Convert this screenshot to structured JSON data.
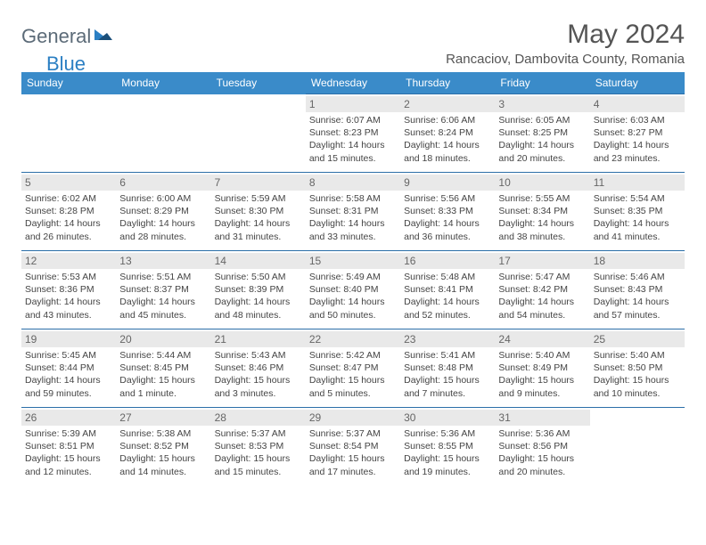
{
  "logo": {
    "part1": "General",
    "part2": "Blue"
  },
  "title": "May 2024",
  "location": "Rancaciov, Dambovita County, Romania",
  "headers": [
    "Sunday",
    "Monday",
    "Tuesday",
    "Wednesday",
    "Thursday",
    "Friday",
    "Saturday"
  ],
  "colors": {
    "header_bg": "#3a8bc9",
    "header_text": "#ffffff",
    "daynum_bg": "#e9e9e9",
    "border": "#2b6ea8",
    "logo_gray": "#5c6b78",
    "logo_blue": "#2b7fc3"
  },
  "weeks": [
    [
      null,
      null,
      null,
      {
        "n": "1",
        "sr": "6:07 AM",
        "ss": "8:23 PM",
        "dl": "14 hours and 15 minutes."
      },
      {
        "n": "2",
        "sr": "6:06 AM",
        "ss": "8:24 PM",
        "dl": "14 hours and 18 minutes."
      },
      {
        "n": "3",
        "sr": "6:05 AM",
        "ss": "8:25 PM",
        "dl": "14 hours and 20 minutes."
      },
      {
        "n": "4",
        "sr": "6:03 AM",
        "ss": "8:27 PM",
        "dl": "14 hours and 23 minutes."
      }
    ],
    [
      {
        "n": "5",
        "sr": "6:02 AM",
        "ss": "8:28 PM",
        "dl": "14 hours and 26 minutes."
      },
      {
        "n": "6",
        "sr": "6:00 AM",
        "ss": "8:29 PM",
        "dl": "14 hours and 28 minutes."
      },
      {
        "n": "7",
        "sr": "5:59 AM",
        "ss": "8:30 PM",
        "dl": "14 hours and 31 minutes."
      },
      {
        "n": "8",
        "sr": "5:58 AM",
        "ss": "8:31 PM",
        "dl": "14 hours and 33 minutes."
      },
      {
        "n": "9",
        "sr": "5:56 AM",
        "ss": "8:33 PM",
        "dl": "14 hours and 36 minutes."
      },
      {
        "n": "10",
        "sr": "5:55 AM",
        "ss": "8:34 PM",
        "dl": "14 hours and 38 minutes."
      },
      {
        "n": "11",
        "sr": "5:54 AM",
        "ss": "8:35 PM",
        "dl": "14 hours and 41 minutes."
      }
    ],
    [
      {
        "n": "12",
        "sr": "5:53 AM",
        "ss": "8:36 PM",
        "dl": "14 hours and 43 minutes."
      },
      {
        "n": "13",
        "sr": "5:51 AM",
        "ss": "8:37 PM",
        "dl": "14 hours and 45 minutes."
      },
      {
        "n": "14",
        "sr": "5:50 AM",
        "ss": "8:39 PM",
        "dl": "14 hours and 48 minutes."
      },
      {
        "n": "15",
        "sr": "5:49 AM",
        "ss": "8:40 PM",
        "dl": "14 hours and 50 minutes."
      },
      {
        "n": "16",
        "sr": "5:48 AM",
        "ss": "8:41 PM",
        "dl": "14 hours and 52 minutes."
      },
      {
        "n": "17",
        "sr": "5:47 AM",
        "ss": "8:42 PM",
        "dl": "14 hours and 54 minutes."
      },
      {
        "n": "18",
        "sr": "5:46 AM",
        "ss": "8:43 PM",
        "dl": "14 hours and 57 minutes."
      }
    ],
    [
      {
        "n": "19",
        "sr": "5:45 AM",
        "ss": "8:44 PM",
        "dl": "14 hours and 59 minutes."
      },
      {
        "n": "20",
        "sr": "5:44 AM",
        "ss": "8:45 PM",
        "dl": "15 hours and 1 minute."
      },
      {
        "n": "21",
        "sr": "5:43 AM",
        "ss": "8:46 PM",
        "dl": "15 hours and 3 minutes."
      },
      {
        "n": "22",
        "sr": "5:42 AM",
        "ss": "8:47 PM",
        "dl": "15 hours and 5 minutes."
      },
      {
        "n": "23",
        "sr": "5:41 AM",
        "ss": "8:48 PM",
        "dl": "15 hours and 7 minutes."
      },
      {
        "n": "24",
        "sr": "5:40 AM",
        "ss": "8:49 PM",
        "dl": "15 hours and 9 minutes."
      },
      {
        "n": "25",
        "sr": "5:40 AM",
        "ss": "8:50 PM",
        "dl": "15 hours and 10 minutes."
      }
    ],
    [
      {
        "n": "26",
        "sr": "5:39 AM",
        "ss": "8:51 PM",
        "dl": "15 hours and 12 minutes."
      },
      {
        "n": "27",
        "sr": "5:38 AM",
        "ss": "8:52 PM",
        "dl": "15 hours and 14 minutes."
      },
      {
        "n": "28",
        "sr": "5:37 AM",
        "ss": "8:53 PM",
        "dl": "15 hours and 15 minutes."
      },
      {
        "n": "29",
        "sr": "5:37 AM",
        "ss": "8:54 PM",
        "dl": "15 hours and 17 minutes."
      },
      {
        "n": "30",
        "sr": "5:36 AM",
        "ss": "8:55 PM",
        "dl": "15 hours and 19 minutes."
      },
      {
        "n": "31",
        "sr": "5:36 AM",
        "ss": "8:56 PM",
        "dl": "15 hours and 20 minutes."
      },
      null
    ]
  ],
  "labels": {
    "sunrise": "Sunrise:",
    "sunset": "Sunset:",
    "daylight": "Daylight:"
  }
}
